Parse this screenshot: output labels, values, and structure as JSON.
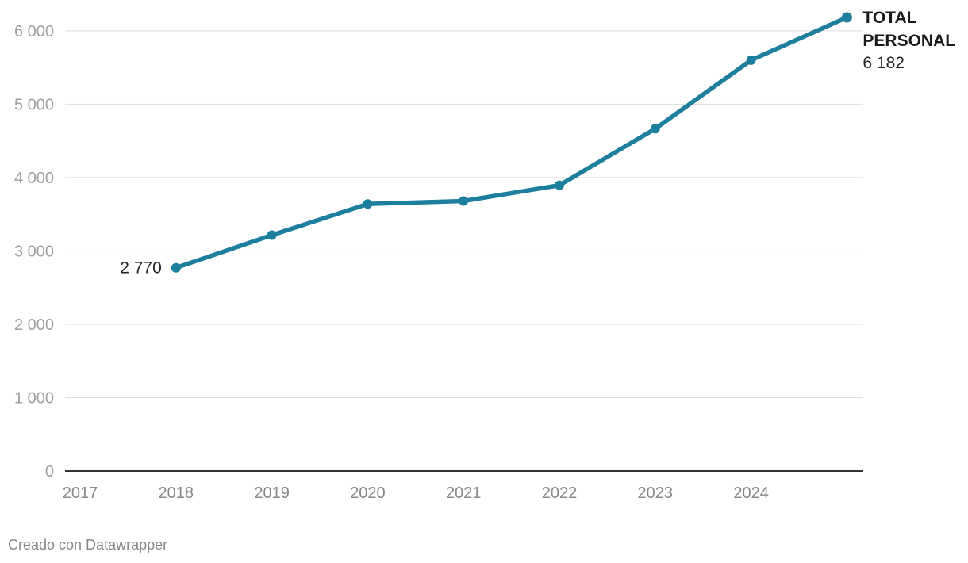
{
  "chart_data": {
    "type": "line",
    "x": [
      "2017",
      "2018",
      "2019",
      "2020",
      "2021",
      "2022",
      "2023",
      "2024",
      "2025"
    ],
    "x_tick_labels": [
      "2017",
      "2018",
      "2019",
      "2020",
      "2021",
      "2022",
      "2023",
      "2024"
    ],
    "series": [
      {
        "name": "TOTAL PERSONAL",
        "name_lines": [
          "TOTAL",
          "PERSONAL"
        ],
        "x": [
          "2018",
          "2019",
          "2020",
          "2021",
          "2022",
          "2023",
          "2024",
          "2025"
        ],
        "values": [
          2770,
          3215,
          3640,
          3680,
          3895,
          4665,
          5600,
          6182
        ],
        "color": "#1d7f9d"
      }
    ],
    "annotations": {
      "start_value_label": "2 770",
      "end_value_label": "6 182"
    },
    "y_ticks": [
      0,
      1000,
      2000,
      3000,
      4000,
      5000,
      6000
    ],
    "y_tick_labels": [
      "0",
      "1 000",
      "2 000",
      "3 000",
      "4 000",
      "5 000",
      "6 000"
    ],
    "ylim": [
      0,
      6182
    ],
    "xlim": [
      "2017",
      "2025"
    ],
    "grid": true,
    "legend": "direct label at end of line",
    "title": "",
    "xlabel": "",
    "ylabel": ""
  },
  "footer": {
    "credit": "Creado con Datawrapper"
  }
}
